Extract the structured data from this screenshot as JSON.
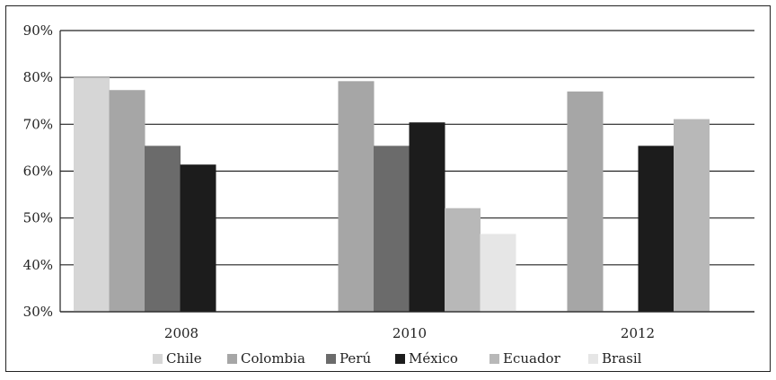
{
  "chart_data": {
    "type": "bar",
    "categories": [
      "2008",
      "2010",
      "2012"
    ],
    "series": [
      {
        "name": "Chile",
        "color": "#d6d6d6",
        "values": [
          80,
          null,
          null
        ]
      },
      {
        "name": "Colombia",
        "color": "#a6a6a6",
        "values": [
          77.3,
          79.2,
          77
        ]
      },
      {
        "name": "Perú",
        "color": "#6b6b6b",
        "values": [
          65.4,
          65.4,
          null
        ]
      },
      {
        "name": "México",
        "color": "#1c1c1c",
        "values": [
          61.4,
          70.4,
          65.4
        ]
      },
      {
        "name": "Ecuador",
        "color": "#b8b8b8",
        "values": [
          null,
          52.1,
          71.1
        ]
      },
      {
        "name": "Brasil",
        "color": "#e6e6e6",
        "values": [
          null,
          46.6,
          null
        ]
      }
    ],
    "y_ticks": [
      "30%",
      "40%",
      "50%",
      "60%",
      "70%",
      "80%",
      "90%"
    ],
    "ylim": [
      30,
      90
    ],
    "grid": true,
    "legend": "bottom"
  }
}
